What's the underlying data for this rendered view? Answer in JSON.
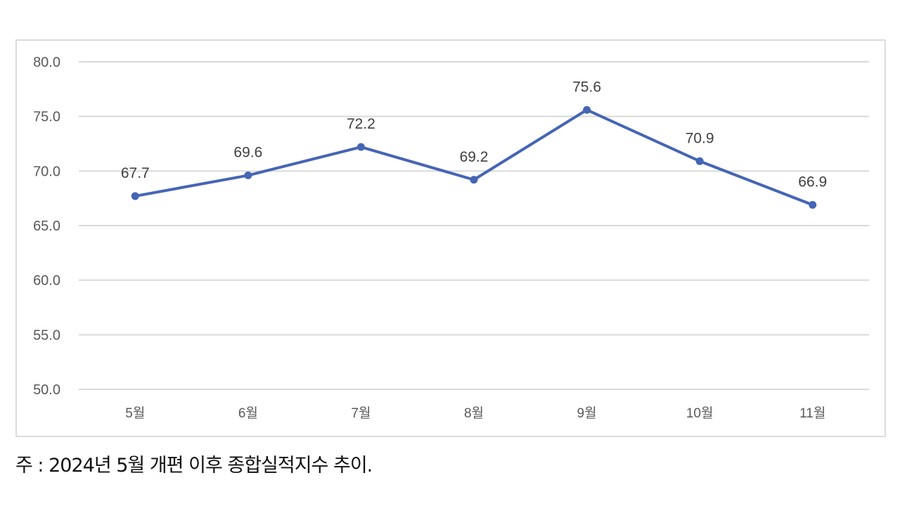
{
  "chart_data": {
    "type": "line",
    "title": "",
    "xlabel": "",
    "ylabel": "",
    "categories": [
      "5월",
      "6월",
      "7월",
      "8월",
      "9월",
      "10월",
      "11월"
    ],
    "series": [
      {
        "name": "종합실적지수",
        "values": [
          67.7,
          69.6,
          72.2,
          69.2,
          75.6,
          70.9,
          66.9
        ],
        "color": "#4565b5"
      }
    ],
    "data_labels": [
      "67.7",
      "69.6",
      "72.2",
      "69.2",
      "75.6",
      "70.9",
      "66.9"
    ],
    "ylim": [
      50.0,
      80.0
    ],
    "yticks": [
      "50.0",
      "55.0",
      "60.0",
      "65.0",
      "70.0",
      "75.0",
      "80.0"
    ],
    "grid": true,
    "legend": "none"
  },
  "footnote": "주 : 2024년 5월 개편 이후 종합실적지수 추이."
}
